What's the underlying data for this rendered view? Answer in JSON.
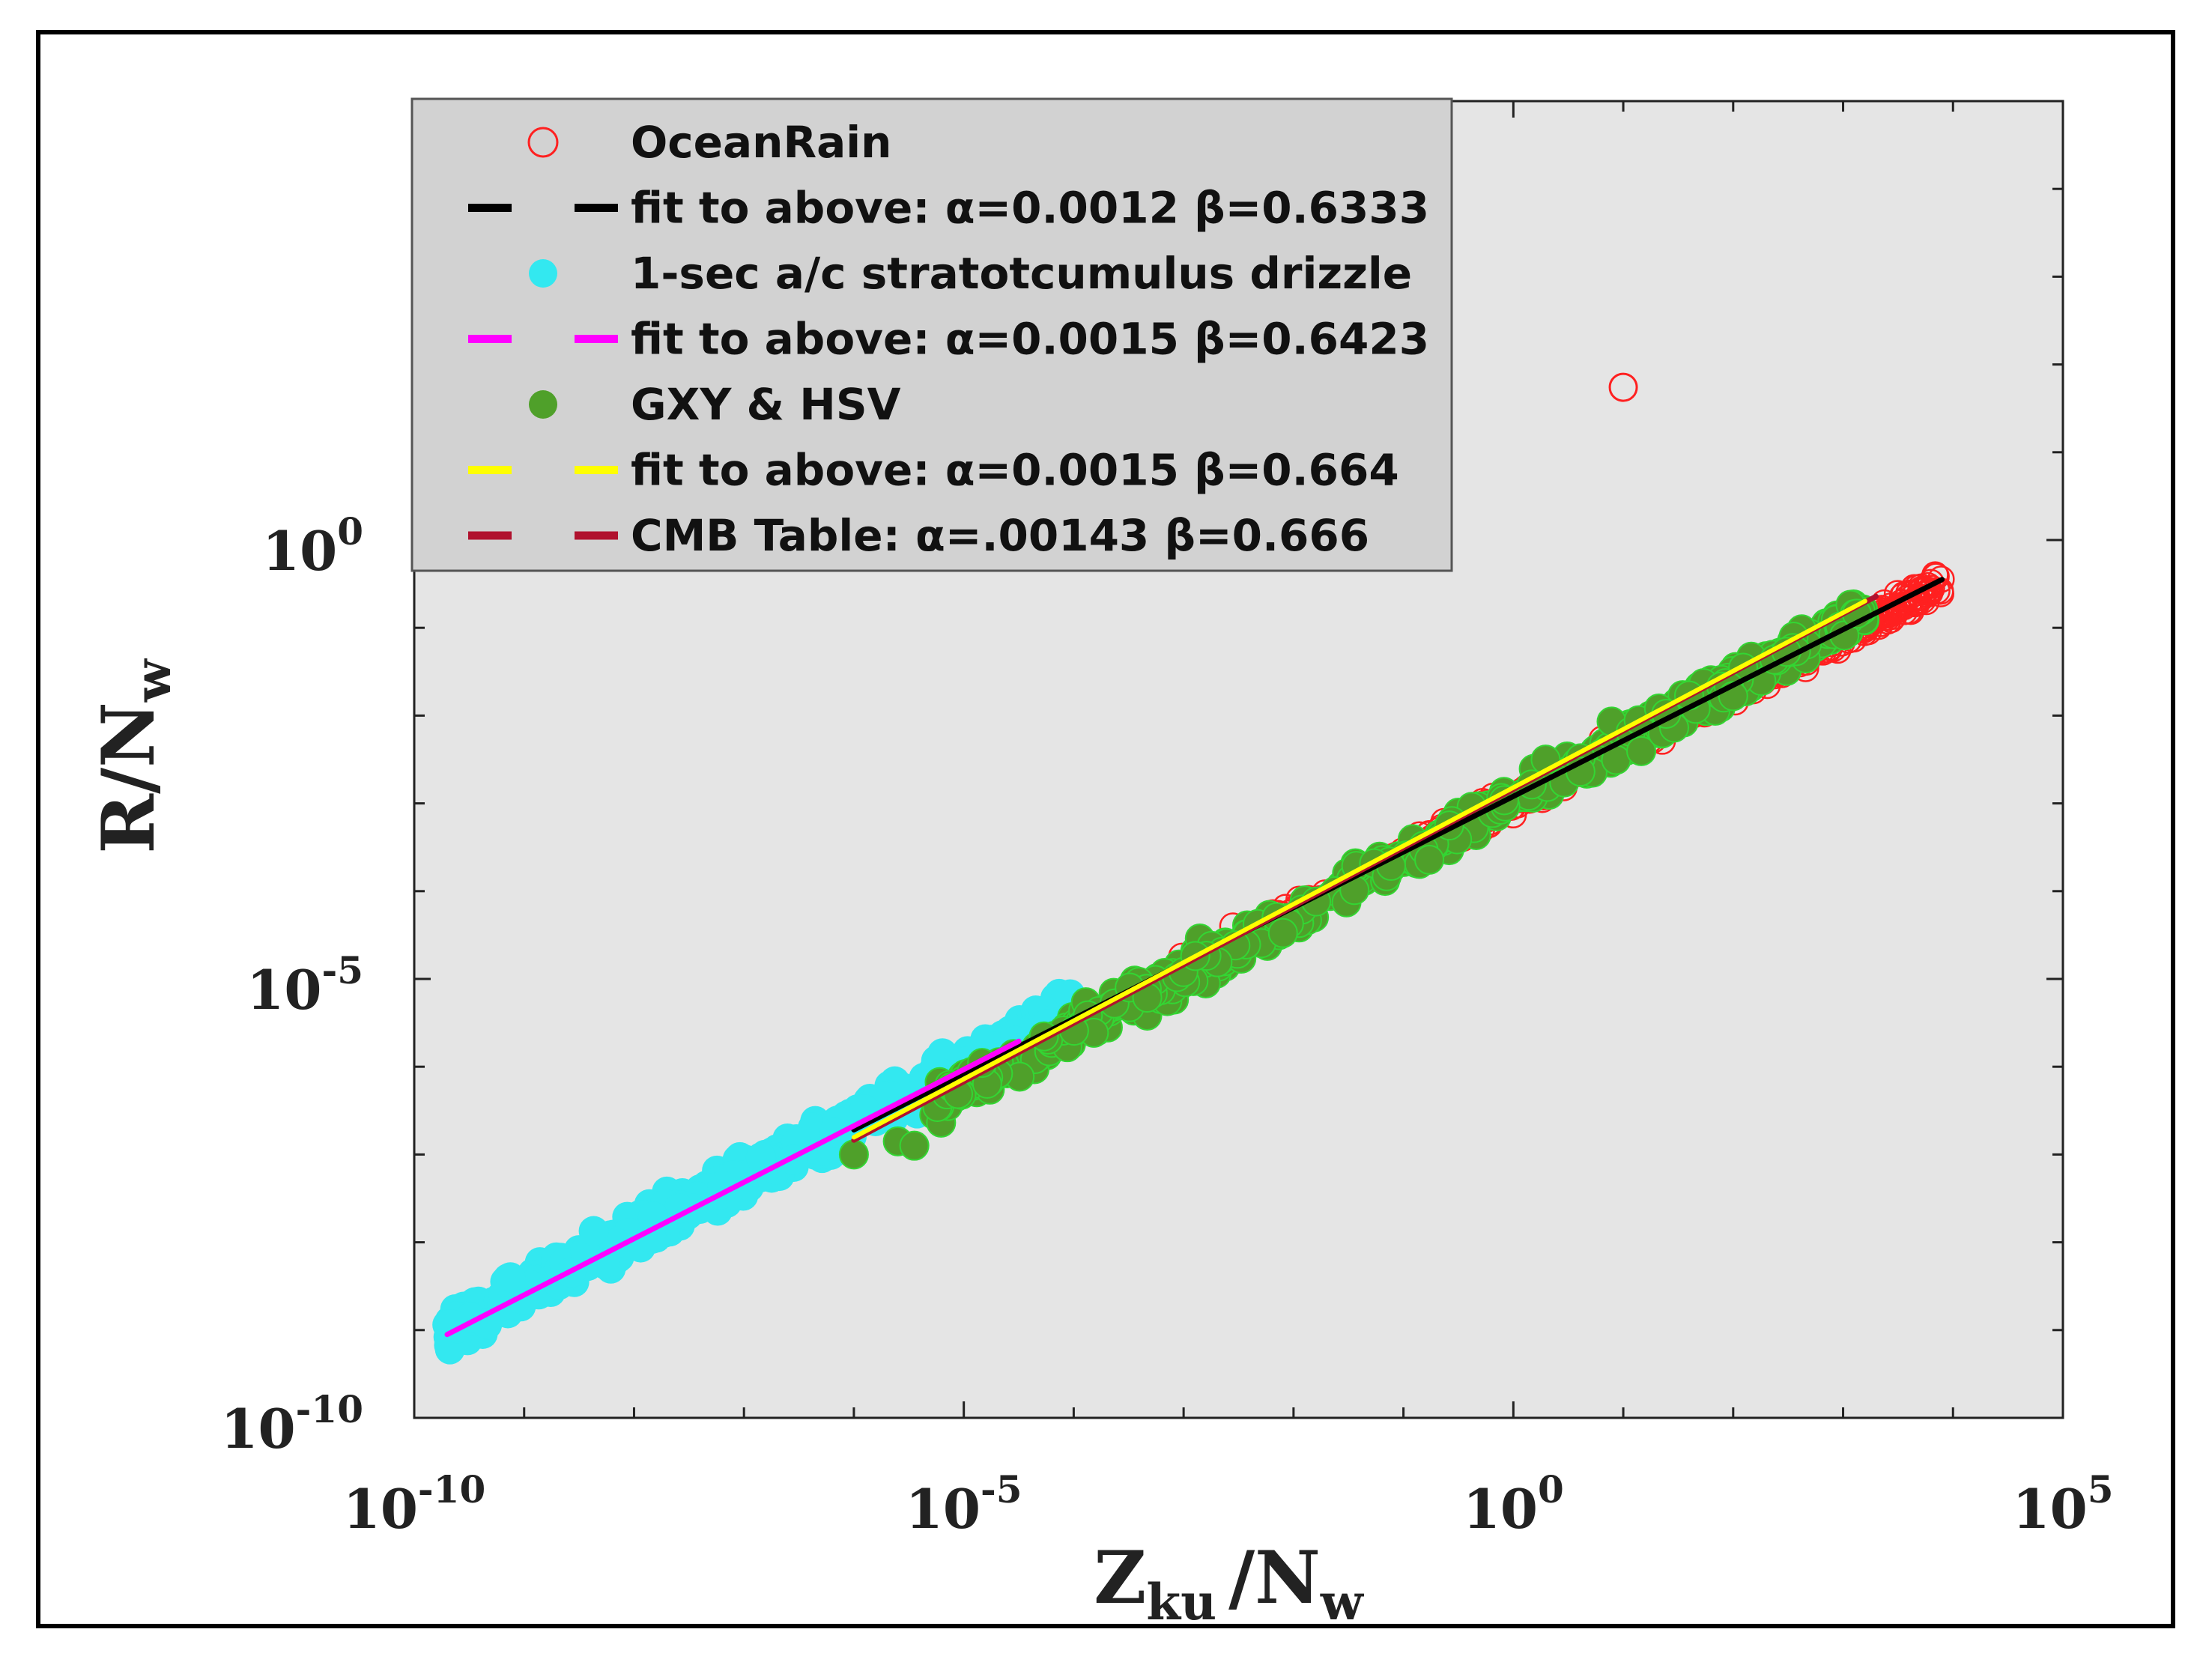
{
  "chart_data": {
    "type": "scatter",
    "xscale": "log",
    "yscale": "log",
    "x_range_log10": [
      -10,
      5
    ],
    "y_range_log10": [
      -10,
      5
    ],
    "x_ticks": [
      {
        "base": "10",
        "exp": "-10",
        "value": -10
      },
      {
        "base": "10",
        "exp": "-5",
        "value": -5
      },
      {
        "base": "10",
        "exp": "0",
        "value": 0
      },
      {
        "base": "10",
        "exp": "5",
        "value": 5
      }
    ],
    "y_ticks": [
      {
        "base": "10",
        "exp": "-10",
        "value": -10
      },
      {
        "base": "10",
        "exp": "-5",
        "value": -5
      },
      {
        "base": "10",
        "exp": "0",
        "value": 0
      }
    ],
    "xlabel": {
      "main": "Z",
      "sub1": "ku",
      "sep": "/N",
      "sub2": "w"
    },
    "ylabel": {
      "main": "R/N",
      "sub": "w"
    },
    "series": [
      {
        "name": "OceanRain",
        "kind": "points",
        "color": "#ff2020",
        "marker": "open-circle",
        "log_x_range": [
          -3.6,
          3.9
        ],
        "log_x_min_extreme": -3.6,
        "intercept_log": -2.92,
        "slope": 0.6333,
        "outlier": [
          1.0,
          1.74
        ]
      },
      {
        "name": "1-sec a/c stratotcumulus drizzle",
        "kind": "points",
        "color": "#33e8f0",
        "marker": "filled-circle",
        "log_x_range": [
          -9.7,
          -4.0
        ],
        "intercept_log": -2.82,
        "slope": 0.6423
      },
      {
        "name": "GXY & HSV",
        "kind": "points",
        "color": "#4fa02a",
        "edge": "#33d633",
        "marker": "filled-circle",
        "log_x_range": [
          -6.1,
          3.2
        ],
        "intercept_log": -2.82,
        "slope": 0.664
      }
    ],
    "fits": [
      {
        "label_prefix": "fit to above: ",
        "alpha_sym": "α",
        "alpha": "0.0012",
        "beta_sym": "β",
        "beta": "0.6333",
        "text": "fit to above: α=0.0012  β=0.6333",
        "color": "#000000",
        "log_x_range": [
          -6.0,
          3.9
        ],
        "intercept_log": -2.92,
        "slope": 0.6333
      },
      {
        "text": "fit to above: α=0.0015  β=0.6423",
        "color": "#ff00ff",
        "log_x_range": [
          -9.7,
          -4.5
        ],
        "intercept_log": -2.82,
        "slope": 0.6423
      },
      {
        "text": "fit to above: α=0.0015 β=0.664",
        "color": "#ffff00",
        "log_x_range": [
          -6.0,
          3.2
        ],
        "intercept_log": -2.82,
        "slope": 0.664
      },
      {
        "text": "CMB Table: α=.00143  β=0.666",
        "color": "#b0122e",
        "log_x_range": [
          -6.0,
          3.3
        ],
        "intercept_log": -2.84,
        "slope": 0.666
      }
    ],
    "legend": {
      "placement": "top-left",
      "entries": [
        {
          "label": "OceanRain",
          "style": "open-circle",
          "color": "#ff2020"
        },
        {
          "label": "fit to above: α=0.0012  β=0.6333",
          "style": "dash",
          "color": "#000000"
        },
        {
          "label": "1-sec a/c stratotcumulus drizzle",
          "style": "filled-circle",
          "color": "#33e8f0"
        },
        {
          "label": "fit to above: α=0.0015  β=0.6423",
          "style": "dash",
          "color": "#ff00ff"
        },
        {
          "label": "GXY & HSV",
          "style": "filled-circle",
          "color": "#4fa02a"
        },
        {
          "label": "fit to above: α=0.0015 β=0.664",
          "style": "dash",
          "color": "#ffff00"
        },
        {
          "label": "CMB Table: α=.00143  β=0.666",
          "style": "dash",
          "color": "#b0122e"
        }
      ]
    },
    "background": "#e5e5e5",
    "grid": false
  }
}
